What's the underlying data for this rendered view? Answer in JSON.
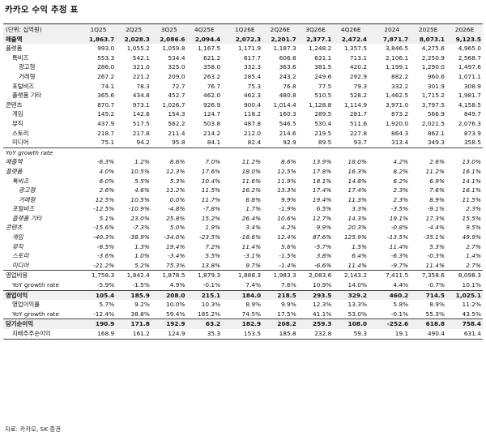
{
  "title": "카카오 수익 추정 표",
  "source": "자료: 카카오, SK 증권",
  "unit": "(단위: 십억원)",
  "columns": [
    "1Q25",
    "2Q25",
    "3Q25",
    "4Q25E",
    "1Q26E",
    "2Q26E",
    "3Q26E",
    "4Q26E",
    "2024",
    "2025E",
    "2026E"
  ],
  "rows": [
    {
      "label": "매출액",
      "style": "hl",
      "values": [
        "1,863.7",
        "2,028.3",
        "2,086.6",
        "2,094.4",
        "2,072.3",
        "2,201.7",
        "2,377.1",
        "2,472.4",
        "7,871.7",
        "8,073.1",
        "9,123.5"
      ]
    },
    {
      "label": "플랫폼",
      "indent": 0,
      "values": [
        "993.0",
        "1,055.2",
        "1,059.8",
        "1,167.5",
        "1,171.9",
        "1,187.3",
        "1,248.2",
        "1,357.5",
        "3,846.5",
        "4,275.6",
        "4,965.0"
      ]
    },
    {
      "label": "톡비즈",
      "indent": 1,
      "values": [
        "553.3",
        "542.1",
        "534.4",
        "621.2",
        "617.7",
        "606.8",
        "631.1",
        "713.1",
        "2,106.1",
        "2,250.9",
        "2,568.7"
      ]
    },
    {
      "label": "광고형",
      "indent": 2,
      "values": [
        "286.0",
        "321.0",
        "325.0",
        "358.0",
        "332.3",
        "363.6",
        "381.5",
        "420.2",
        "1,199.1",
        "1,290.0",
        "1,497.6"
      ]
    },
    {
      "label": "거래형",
      "indent": 2,
      "values": [
        "267.2",
        "221.2",
        "209.0",
        "263.2",
        "285.4",
        "243.2",
        "249.6",
        "292.9",
        "882.2",
        "960.6",
        "1,071.1"
      ]
    },
    {
      "label": "포털비즈",
      "indent": 1,
      "values": [
        "74.1",
        "78.3",
        "72.7",
        "76.7",
        "75.3",
        "76.8",
        "77.5",
        "79.3",
        "332.2",
        "301.9",
        "308.9"
      ]
    },
    {
      "label": "플랫폼 기타",
      "indent": 1,
      "values": [
        "365.6",
        "434.8",
        "452.7",
        "462.0",
        "462.3",
        "480.8",
        "510.5",
        "528.2",
        "1,462.5",
        "1,715.2",
        "1,981.7"
      ]
    },
    {
      "label": "콘텐츠",
      "indent": 0,
      "values": [
        "870.7",
        "973.1",
        "1,026.7",
        "926.9",
        "900.4",
        "1,014.4",
        "1,128.8",
        "1,114.9",
        "3,971.0",
        "3,797.5",
        "4,158.5"
      ]
    },
    {
      "label": "게임",
      "indent": 1,
      "values": [
        "145.2",
        "142.6",
        "154.3",
        "124.7",
        "118.2",
        "160.3",
        "289.5",
        "281.7",
        "873.2",
        "566.9",
        "849.7"
      ]
    },
    {
      "label": "뮤직",
      "indent": 1,
      "values": [
        "437.9",
        "517.5",
        "562.2",
        "503.8",
        "487.8",
        "546.5",
        "530.4",
        "511.6",
        "1,920.0",
        "2,021.5",
        "2,076.3"
      ]
    },
    {
      "label": "스토리",
      "indent": 1,
      "values": [
        "218.7",
        "217.8",
        "211.4",
        "214.2",
        "212.0",
        "214.6",
        "219.5",
        "227.8",
        "864.3",
        "862.1",
        "873.9"
      ]
    },
    {
      "label": "미디어",
      "indent": 1,
      "values": [
        "75.1",
        "94.2",
        "95.8",
        "84.1",
        "82.4",
        "92.9",
        "89.5",
        "93.7",
        "313.4",
        "349.3",
        "358.5"
      ]
    },
    {
      "label": "YoY growth rate",
      "style": "pct",
      "sep": true,
      "values": [
        "",
        "",
        "",
        "",
        "",
        "",
        "",
        "",
        "",
        "",
        ""
      ]
    },
    {
      "label": "매출액",
      "style": "pct",
      "indent": 0,
      "values": [
        "-6.3%",
        "1.2%",
        "8.6%",
        "7.0%",
        "11.2%",
        "8.6%",
        "13.9%",
        "18.0%",
        "4.2%",
        "2.6%",
        "13.0%"
      ]
    },
    {
      "label": "플랫폼",
      "style": "pct",
      "indent": 0,
      "values": [
        "4.0%",
        "10.5%",
        "12.3%",
        "17.6%",
        "18.0%",
        "12.5%",
        "17.8%",
        "16.3%",
        "8.2%",
        "11.2%",
        "16.1%"
      ]
    },
    {
      "label": "톡비즈",
      "style": "pct",
      "indent": 1,
      "values": [
        "6.0%",
        "5.5%",
        "5.3%",
        "10.4%",
        "11.6%",
        "11.9%",
        "18.1%",
        "14.8%",
        "6.2%",
        "6.9%",
        "14.1%"
      ]
    },
    {
      "label": "광고형",
      "style": "pct",
      "indent": 2,
      "values": [
        "2.6%",
        "4.6%",
        "11.2%",
        "11.5%",
        "16.2%",
        "13.3%",
        "17.4%",
        "17.4%",
        "2.3%",
        "7.6%",
        "16.1%"
      ]
    },
    {
      "label": "거래형",
      "style": "pct",
      "indent": 2,
      "values": [
        "12.5%",
        "10.5%",
        "0.0%",
        "11.7%",
        "6.8%",
        "9.9%",
        "19.4%",
        "11.3%",
        "2.3%",
        "8.9%",
        "11.5%"
      ]
    },
    {
      "label": "포털비즈",
      "style": "pct",
      "indent": 1,
      "values": [
        "-12.5%",
        "-10.9%",
        "-4.8%",
        "-7.8%",
        "1.7%",
        "-1.9%",
        "6.5%",
        "3.3%",
        "-3.5%",
        "-9.1%",
        "2.3%"
      ]
    },
    {
      "label": "플랫폼 기타",
      "style": "pct",
      "indent": 1,
      "values": [
        "5.1%",
        "23.0%",
        "25.8%",
        "15.2%",
        "26.4%",
        "10.6%",
        "12.7%",
        "14.3%",
        "19.1%",
        "17.3%",
        "15.5%"
      ]
    },
    {
      "label": "콘텐츠",
      "style": "pct",
      "indent": 0,
      "values": [
        "-15.6%",
        "-7.3%",
        "5.0%",
        "1.9%",
        "3.4%",
        "4.2%",
        "9.9%",
        "20.3%",
        "-0.8%",
        "-4.4%",
        "9.5%"
      ]
    },
    {
      "label": "게임",
      "style": "pct",
      "indent": 1,
      "values": [
        "-40.3%",
        "-38.9%",
        "-34.0%",
        "-23.5%",
        "-18.6%",
        "12.4%",
        "87.6%",
        "125.9%",
        "-13.5%",
        "-35.1%",
        "49.9%"
      ]
    },
    {
      "label": "뮤직",
      "style": "pct",
      "indent": 1,
      "values": [
        "-6.5%",
        "1.3%",
        "19.4%",
        "7.2%",
        "11.4%",
        "5.6%",
        "-5.7%",
        "1.5%",
        "11.4%",
        "5.3%",
        "2.7%"
      ]
    },
    {
      "label": "스토리",
      "style": "pct",
      "indent": 1,
      "values": [
        "-3.6%",
        "1.0%",
        "-3.4%",
        "5.5%",
        "-3.1%",
        "-1.5%",
        "3.8%",
        "6.4%",
        "-6.3%",
        "-0.3%",
        "1.4%"
      ]
    },
    {
      "label": "미디어",
      "style": "pct",
      "indent": 1,
      "values": [
        "-21.2%",
        "5.2%",
        "75.3%",
        "13.8%",
        "9.7%",
        "-1.4%",
        "-6.6%",
        "11.4%",
        "-9.7%",
        "11.4%",
        "2.7%"
      ]
    },
    {
      "label": "영업비용",
      "indent": 0,
      "sep": true,
      "values": [
        "1,758.3",
        "1,842.4",
        "1,878.5",
        "1,879.3",
        "1,888.3",
        "1,983.3",
        "2,083.6",
        "2,143.2",
        "7,411.5",
        "7,358.6",
        "8,098.3"
      ]
    },
    {
      "label": "YoY growth rate",
      "indent": 1,
      "values": [
        "-5.9%",
        "-1.5%",
        "4.9%",
        "-0.1%",
        "7.4%",
        "7.6%",
        "10.9%",
        "14.0%",
        "4.4%",
        "-0.7%",
        "10.1%"
      ]
    },
    {
      "label": "영업이익",
      "style": "hl",
      "sep": true,
      "values": [
        "105.4",
        "185.9",
        "208.0",
        "215.1",
        "184.0",
        "218.5",
        "293.5",
        "329.2",
        "460.2",
        "714.5",
        "1,025.1"
      ]
    },
    {
      "label": "영업이익률",
      "indent": 1,
      "values": [
        "5.7%",
        "9.2%",
        "10.0%",
        "10.3%",
        "8.9%",
        "9.9%",
        "12.3%",
        "13.3%",
        "5.8%",
        "8.9%",
        "11.2%"
      ]
    },
    {
      "label": "YoY growth rate",
      "indent": 1,
      "values": [
        "-12.4%",
        "38.8%",
        "59.4%",
        "185.2%",
        "74.5%",
        "17.5%",
        "41.1%",
        "53.0%",
        "-0.1%",
        "55.3%",
        "43.5%"
      ]
    },
    {
      "label": "당기순이익",
      "style": "hl",
      "sep": true,
      "values": [
        "190.9",
        "171.8",
        "192.9",
        "63.2",
        "182.9",
        "208.2",
        "259.3",
        "108.0",
        "-252.6",
        "618.8",
        "758.4"
      ]
    },
    {
      "label": "지배주주순이익",
      "indent": 1,
      "sepb": true,
      "values": [
        "168.9",
        "161.2",
        "124.9",
        "35.3",
        "153.5",
        "185.8",
        "232.8",
        "59.3",
        "19.1",
        "490.4",
        "631.4"
      ]
    }
  ]
}
